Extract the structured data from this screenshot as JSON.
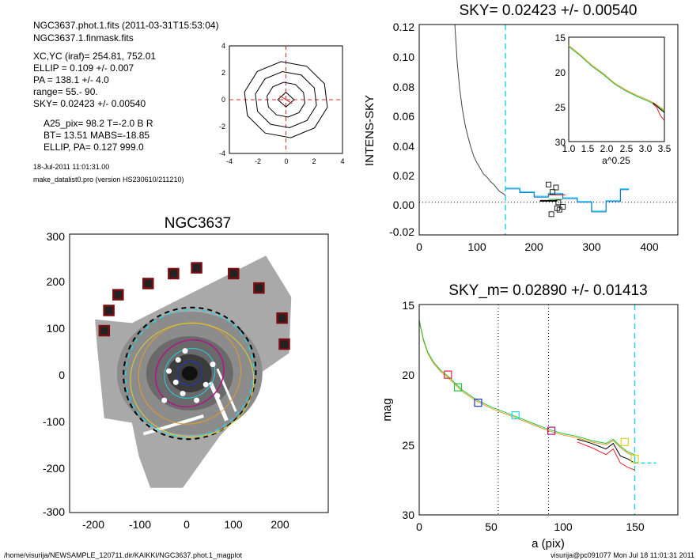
{
  "header": {
    "file_line": "NGC3637.phot.1.fits  (2011-03-31T15:53:04)",
    "mask_line": "NGC3637.1.finmask.fits",
    "params": [
      "XC,YC (iraf)=   254.81, 752.01",
      "ELLIP = 0.109 +/- 0.007",
      "PA    = 138.1 +/-   4.0",
      "range=   55.-   90.",
      "SKY= 0.02423 +/- 0.00540"
    ],
    "galaxy_info": [
      "A25_pix= 98.2   T=-2.0  B R",
      "BT=  13.51    MABS=-18.85",
      "ELLIP, PA= 0.127   999.0"
    ],
    "date_line": "18-Jul-2011 11:01:31.00",
    "program_line": "make_datalist0.pro (version HS230610/211210)"
  },
  "footer": {
    "path": "/home/visurija/NEWSAMPLE_120711.dir/KAIKKI/NGC3637.phot.1_magplot",
    "user_stamp": "visurija@pc091077  Mon Jul 18 11:01:31 2011"
  },
  "colors": {
    "cyan": "#22d3e6",
    "red": "#e8232a",
    "green": "#22c43a",
    "blue": "#2233cc",
    "magenta": "#b0158a",
    "orange": "#e89a2a",
    "yellow": "#d9d22a",
    "darkred": "#7a0d12"
  },
  "chart_data": [
    {
      "id": "contour",
      "type": "contour",
      "x_ticks": [
        "-4",
        "-2",
        "0",
        "2",
        "4"
      ],
      "y_ticks": [
        "-4",
        "-2",
        "0",
        "2",
        "4"
      ],
      "xlim": [
        -4,
        4
      ],
      "ylim": [
        -4,
        4
      ],
      "contour_radii": [
        0.55,
        1.3,
        2.1,
        2.85
      ],
      "center": [
        0,
        0
      ]
    },
    {
      "id": "image",
      "type": "scatter",
      "title": "NGC3637",
      "xlim": [
        -260,
        300
      ],
      "ylim": [
        -310,
        310
      ],
      "x_ticks": [
        "-200",
        "-100",
        "0",
        "100",
        "200"
      ],
      "y_ticks": [
        "-300",
        "-200",
        "-100",
        "0",
        "100",
        "200",
        "300"
      ],
      "mask_squares_x": [
        -185,
        -175,
        -155,
        -90,
        -35,
        15,
        95,
        150,
        200,
        205
      ],
      "mask_squares_y": [
        95,
        140,
        175,
        200,
        222,
        235,
        222,
        190,
        123,
        65
      ],
      "ellipse_semi_axes": [
        145,
        113,
        77,
        57,
        28
      ]
    },
    {
      "id": "sky",
      "type": "line",
      "title": "SKY= 0.02423 +/- 0.00540",
      "ylabel": "INTENS-SKY",
      "xlim": [
        0,
        450
      ],
      "ylim": [
        -0.022,
        0.12
      ],
      "x_ticks": [
        "0",
        "100",
        "200",
        "300",
        "400"
      ],
      "y_ticks": [
        "-0.02",
        "0.00",
        "0.02",
        "0.04",
        "0.06",
        "0.08",
        "0.10",
        "0.12"
      ],
      "sky_radius": 150,
      "profile_x": [
        62,
        66,
        70,
        75,
        80,
        85,
        90,
        95,
        100,
        106,
        112,
        118,
        124,
        130,
        136,
        141,
        146,
        150
      ],
      "profile_y": [
        0.12,
        0.095,
        0.078,
        0.063,
        0.052,
        0.044,
        0.037,
        0.031,
        0.027,
        0.023,
        0.019,
        0.017,
        0.014,
        0.012,
        0.009,
        0.007,
        0.006,
        0.0045
      ],
      "step_x": [
        150,
        175,
        200,
        225,
        250,
        275,
        300,
        325,
        350,
        365
      ],
      "step_y": [
        0.0095,
        0.007,
        0.004,
        0.006,
        0.003,
        0.0005,
        -0.006,
        0.001,
        0.009,
        0.009
      ],
      "sky_points_x": [
        225,
        232,
        238,
        242,
        244,
        250,
        230,
        240
      ],
      "sky_points_y": [
        0.012,
        0.007,
        0.01,
        0.0,
        -0.005,
        -0.003,
        -0.008,
        -0.004
      ]
    },
    {
      "id": "inset",
      "type": "line",
      "xlabel": "a^0.25",
      "xlim": [
        1.0,
        3.5
      ],
      "ylim": [
        15,
        30
      ],
      "x_ticks": [
        "1.0",
        "1.5",
        "2.0",
        "2.5",
        "3.0",
        "3.5"
      ],
      "y_ticks": [
        "15",
        "20",
        "25",
        "30"
      ],
      "x": [
        1.0,
        1.3,
        1.6,
        1.9,
        2.2,
        2.5,
        2.8,
        3.1,
        3.3,
        3.5
      ],
      "y": [
        16.2,
        17.5,
        19.0,
        20.2,
        21.6,
        22.6,
        23.4,
        24.1,
        24.7,
        25.5
      ],
      "tail_x": [
        3.2,
        3.3,
        3.4,
        3.5
      ],
      "tail_red": [
        24.6,
        25.1,
        26.3,
        27.0
      ],
      "tail_black": [
        24.4,
        24.9,
        25.4,
        25.8
      ]
    },
    {
      "id": "mag",
      "type": "line",
      "title": "SKY_m=  0.02890 +/- 0.01413",
      "xlabel": "a (pix)",
      "ylabel": "mag",
      "xlim": [
        0,
        180
      ],
      "ylim": [
        15,
        30
      ],
      "x_ticks": [
        "0",
        "50",
        "100",
        "150"
      ],
      "y_ticks": [
        "15",
        "20",
        "25",
        "30"
      ],
      "range_lines": [
        55,
        90
      ],
      "sky_radius": 150,
      "x": [
        0,
        3,
        6,
        10,
        15,
        20,
        25,
        30,
        40,
        50,
        60,
        70,
        80,
        90,
        100,
        110,
        120,
        130,
        135,
        140,
        145,
        150
      ],
      "y": [
        16.2,
        17.6,
        18.5,
        19.2,
        19.8,
        20.2,
        20.7,
        21.2,
        21.9,
        22.4,
        22.8,
        23.2,
        23.6,
        24.0,
        24.3,
        24.5,
        24.8,
        25.0,
        24.7,
        25.2,
        25.6,
        25.8
      ],
      "tail_x": [
        110,
        120,
        130,
        135,
        140,
        145,
        150
      ],
      "tail_red": [
        24.8,
        25.2,
        25.7,
        25.3,
        26.3,
        26.6,
        26.8
      ],
      "tail_black": [
        24.6,
        24.9,
        25.3,
        24.9,
        25.8,
        26.0,
        26.3
      ],
      "markers": [
        {
          "x": 20,
          "y": 20.0,
          "color": "red"
        },
        {
          "x": 27,
          "y": 20.9,
          "color": "green"
        },
        {
          "x": 41,
          "y": 22.0,
          "color": "blue"
        },
        {
          "x": 67,
          "y": 22.9,
          "color": "cyan"
        },
        {
          "x": 92,
          "y": 24.0,
          "color": "magenta"
        },
        {
          "x": 143,
          "y": 24.8,
          "color": "yellow"
        },
        {
          "x": 150,
          "y": 26.0,
          "color": "yellow"
        }
      ]
    }
  ]
}
